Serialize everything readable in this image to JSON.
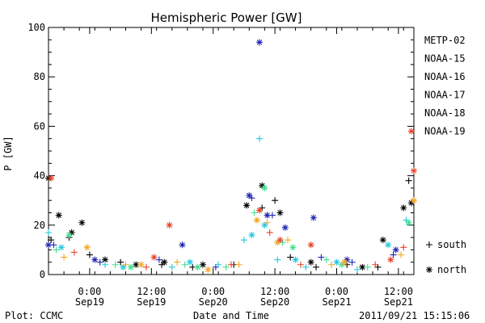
{
  "chart_data": {
    "type": "scatter",
    "title": "Hemispheric Power [GW]",
    "ylabel": "P [GW]",
    "xlabel": "Date and Time",
    "ylim": [
      0,
      100
    ],
    "yticks": [
      0,
      20,
      40,
      60,
      80,
      100
    ],
    "xlim": [
      "2011-09-18 16:00",
      "2011-09-21 15:00"
    ],
    "xticks": [
      {
        "t": "2011-09-19 00:00",
        "time": "0:00",
        "date": "Sep19"
      },
      {
        "t": "2011-09-19 12:00",
        "time": "12:00",
        "date": "Sep19"
      },
      {
        "t": "2011-09-20 00:00",
        "time": "0:00",
        "date": "Sep20"
      },
      {
        "t": "2011-09-20 12:00",
        "time": "12:00",
        "date": "Sep20"
      },
      {
        "t": "2011-09-21 00:00",
        "time": "0:00",
        "date": "Sep21"
      },
      {
        "t": "2011-09-21 12:00",
        "time": "12:00",
        "date": "Sep21"
      }
    ],
    "grid": false,
    "legend_position": "right",
    "marker_legend": [
      {
        "marker": "plus",
        "label": "south"
      },
      {
        "marker": "asterisk",
        "label": "north"
      }
    ],
    "series": [
      {
        "name": "METP-02",
        "color": "#000000",
        "south": [
          [
            "2011-09-18 16:30",
            14
          ],
          [
            "2011-09-18 20:00",
            15
          ],
          [
            "2011-09-19 00:00",
            8
          ],
          [
            "2011-09-19 06:00",
            5
          ],
          [
            "2011-09-19 14:00",
            4
          ],
          [
            "2011-09-19 20:00",
            3
          ],
          [
            "2011-09-20 04:00",
            4
          ],
          [
            "2011-09-20 09:30",
            27
          ],
          [
            "2011-09-20 12:00",
            30
          ],
          [
            "2011-09-20 15:00",
            7
          ],
          [
            "2011-09-20 20:00",
            3
          ],
          [
            "2011-09-21 02:00",
            4
          ],
          [
            "2011-09-21 08:00",
            3
          ],
          [
            "2011-09-21 14:00",
            38
          ]
        ],
        "north": [
          [
            "2011-09-18 16:00",
            39
          ],
          [
            "2011-09-18 18:00",
            24
          ],
          [
            "2011-09-18 20:30",
            17
          ],
          [
            "2011-09-18 22:30",
            21
          ],
          [
            "2011-09-19 03:00",
            6
          ],
          [
            "2011-09-19 09:00",
            4
          ],
          [
            "2011-09-19 14:30",
            5
          ],
          [
            "2011-09-19 22:00",
            4
          ],
          [
            "2011-09-20 06:30",
            28
          ],
          [
            "2011-09-20 09:30",
            36
          ],
          [
            "2011-09-20 13:00",
            25
          ],
          [
            "2011-09-20 19:00",
            5
          ],
          [
            "2011-09-21 05:00",
            3
          ],
          [
            "2011-09-21 09:00",
            14
          ],
          [
            "2011-09-21 13:00",
            27
          ],
          [
            "2011-09-21 14:30",
            29
          ]
        ]
      },
      {
        "name": "NOAA-15",
        "color": "#1f25b4",
        "south": [
          [
            "2011-09-18 17:00",
            12
          ],
          [
            "2011-09-19 02:00",
            5
          ],
          [
            "2011-09-19 13:30",
            6
          ],
          [
            "2011-09-20 00:30",
            3
          ],
          [
            "2011-09-20 07:30",
            31
          ],
          [
            "2011-09-20 11:30",
            24
          ],
          [
            "2011-09-20 21:00",
            7
          ],
          [
            "2011-09-21 03:00",
            5
          ],
          [
            "2011-09-21 11:00",
            8
          ]
        ],
        "north": [
          [
            "2011-09-18 16:00",
            12
          ],
          [
            "2011-09-19 01:00",
            6
          ],
          [
            "2011-09-19 18:00",
            12
          ],
          [
            "2011-09-20 07:00",
            32
          ],
          [
            "2011-09-20 09:00",
            94
          ],
          [
            "2011-09-20 10:30",
            24
          ],
          [
            "2011-09-20 14:00",
            19
          ],
          [
            "2011-09-20 19:30",
            23
          ],
          [
            "2011-09-21 02:00",
            6
          ],
          [
            "2011-09-21 11:30",
            10
          ]
        ]
      },
      {
        "name": "NOAA-16",
        "color": "#26c8e0",
        "south": [
          [
            "2011-09-18 16:00",
            17
          ],
          [
            "2011-09-19 03:00",
            4
          ],
          [
            "2011-09-19 16:00",
            3
          ],
          [
            "2011-09-20 01:00",
            4
          ],
          [
            "2011-09-20 06:00",
            14
          ],
          [
            "2011-09-20 09:00",
            55
          ],
          [
            "2011-09-20 12:30",
            6
          ],
          [
            "2011-09-20 18:00",
            3
          ],
          [
            "2011-09-21 04:00",
            2
          ],
          [
            "2011-09-21 13:30",
            22
          ]
        ],
        "north": [
          [
            "2011-09-18 18:30",
            11
          ],
          [
            "2011-09-19 06:30",
            3
          ],
          [
            "2011-09-19 19:30",
            5
          ],
          [
            "2011-09-20 07:30",
            16
          ],
          [
            "2011-09-20 10:00",
            20
          ],
          [
            "2011-09-20 16:00",
            6
          ],
          [
            "2011-09-21 00:00",
            5
          ],
          [
            "2011-09-21 10:00",
            12
          ]
        ]
      },
      {
        "name": "NOAA-17",
        "color": "#3ee08e",
        "south": [
          [
            "2011-09-18 17:30",
            10
          ],
          [
            "2011-09-19 05:00",
            4
          ],
          [
            "2011-09-19 18:30",
            4
          ],
          [
            "2011-09-20 02:30",
            3
          ],
          [
            "2011-09-20 08:00",
            25
          ],
          [
            "2011-09-20 13:30",
            13
          ],
          [
            "2011-09-20 22:00",
            6
          ],
          [
            "2011-09-21 06:00",
            3
          ]
        ],
        "north": [
          [
            "2011-09-18 20:00",
            16
          ],
          [
            "2011-09-19 08:00",
            3
          ],
          [
            "2011-09-19 21:00",
            3
          ],
          [
            "2011-09-20 10:00",
            35
          ],
          [
            "2011-09-20 15:30",
            11
          ],
          [
            "2011-09-21 01:00",
            4
          ],
          [
            "2011-09-21 14:00",
            21
          ]
        ]
      },
      {
        "name": "NOAA-18",
        "color": "#f5a623",
        "south": [
          [
            "2011-09-18 19:00",
            7
          ],
          [
            "2011-09-19 07:00",
            4
          ],
          [
            "2011-09-19 17:00",
            5
          ],
          [
            "2011-09-20 05:00",
            4
          ],
          [
            "2011-09-20 10:30",
            21
          ],
          [
            "2011-09-20 14:30",
            14
          ],
          [
            "2011-09-20 23:00",
            4
          ],
          [
            "2011-09-21 12:30",
            8
          ]
        ],
        "north": [
          [
            "2011-09-18 23:30",
            11
          ],
          [
            "2011-09-19 10:00",
            4
          ],
          [
            "2011-09-19 23:00",
            2
          ],
          [
            "2011-09-20 08:30",
            22
          ],
          [
            "2011-09-20 12:30",
            13
          ],
          [
            "2011-09-21 01:30",
            5
          ],
          [
            "2011-09-21 15:00",
            30
          ]
        ]
      },
      {
        "name": "NOAA-19",
        "color": "#e8442a",
        "south": [
          [
            "2011-09-18 21:00",
            9
          ],
          [
            "2011-09-19 11:00",
            3
          ],
          [
            "2011-09-20 03:30",
            4
          ],
          [
            "2011-09-20 11:00",
            17
          ],
          [
            "2011-09-20 17:00",
            4
          ],
          [
            "2011-09-21 07:30",
            4
          ],
          [
            "2011-09-21 13:00",
            11
          ]
        ],
        "north": [
          [
            "2011-09-18 16:30",
            39
          ],
          [
            "2011-09-19 12:30",
            7
          ],
          [
            "2011-09-19 15:30",
            20
          ],
          [
            "2011-09-20 09:00",
            26
          ],
          [
            "2011-09-20 13:00",
            14
          ],
          [
            "2011-09-20 19:00",
            12
          ],
          [
            "2011-09-21 10:30",
            6
          ],
          [
            "2011-09-21 14:30",
            58
          ],
          [
            "2011-09-21 15:00",
            42
          ]
        ]
      }
    ]
  },
  "footer": {
    "plot_credit": "Plot: CCMC",
    "timestamp": "2011/09/21  15:15:06"
  }
}
